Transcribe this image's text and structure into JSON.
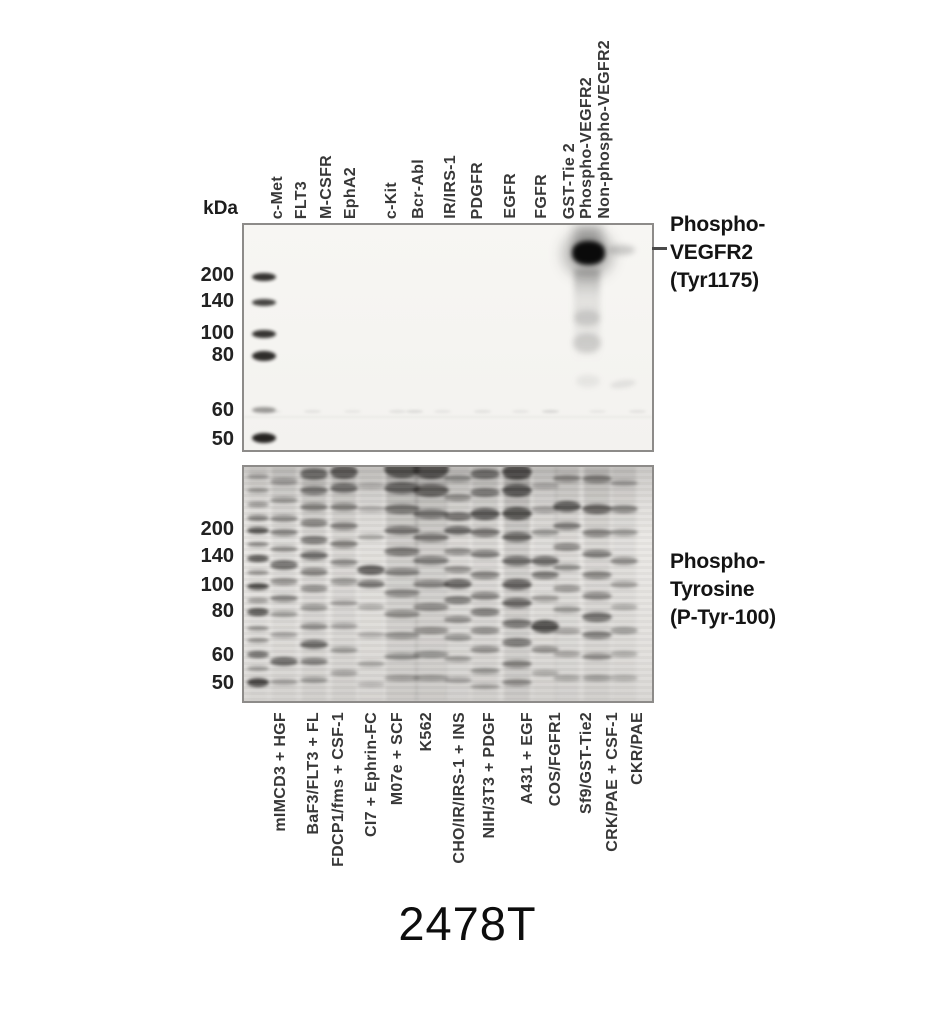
{
  "catalog_number": "2478T",
  "kda_unit": "kDa",
  "top_blot": {
    "antibody_lines": [
      "Phospho-",
      "VEGFR2",
      "(Tyr1175)"
    ],
    "lane_labels": [
      "c-Met",
      "FLT3",
      "M-CSFR",
      "EphA2",
      "c-Kit",
      "Bcr-Abl",
      "IR/IRS-1",
      "PDGFR",
      "EGFR",
      "FGFR",
      "GST-Tie 2",
      "Phospho-VEGFR2",
      "Non-phospho-VEGFR2"
    ],
    "markers": [
      {
        "label": "200",
        "pos": 0.231,
        "dark": 0.85,
        "h": 8
      },
      {
        "label": "140",
        "pos": 0.345,
        "dark": 0.78,
        "h": 7
      },
      {
        "label": "100",
        "pos": 0.485,
        "dark": 0.85,
        "h": 8
      },
      {
        "label": "80",
        "pos": 0.581,
        "dark": 0.88,
        "h": 10
      },
      {
        "label": "60",
        "pos": 0.821,
        "dark": 0.4,
        "h": 6
      },
      {
        "label": "50",
        "pos": 0.948,
        "dark": 0.92,
        "h": 10
      }
    ],
    "bands": {
      "strong_band_lane": "Phospho-VEGFR2",
      "faint_band_lane": "Non-phospho-VEGFR2"
    }
  },
  "bottom_blot": {
    "antibody_lines": [
      "Phospho-",
      "Tyrosine",
      "(P-Tyr-100)"
    ],
    "lane_labels": [
      "mIMCD3 + HGF",
      "BaF3/FLT3 + FL",
      "FDCP1/fms + CSF-1",
      "CI7 + Ephrin-FC",
      "M07e + SCF",
      "K562",
      "CHO/IR/IRS-1 + INS",
      "NIH/3T3 + PDGF",
      "A431 + EGF",
      "COS/FGFR1",
      "Sf9/GST-Tie2",
      "CRK/PAE + CSF-1",
      "CKR/PAE"
    ],
    "markers": [
      {
        "label": "200",
        "pos": 0.273
      },
      {
        "label": "140",
        "pos": 0.387
      },
      {
        "label": "100",
        "pos": 0.508
      },
      {
        "label": "80",
        "pos": 0.618
      },
      {
        "label": "60",
        "pos": 0.803
      },
      {
        "label": "50",
        "pos": 0.92
      }
    ],
    "lanes": [
      {
        "name": "marker",
        "base": 0.05,
        "bands": [
          [
            0.04,
            0.3,
            5
          ],
          [
            0.1,
            0.35,
            5
          ],
          [
            0.16,
            0.4,
            5
          ],
          [
            0.22,
            0.5,
            6
          ],
          [
            0.27,
            0.7,
            7
          ],
          [
            0.33,
            0.45,
            5
          ],
          [
            0.39,
            0.7,
            7
          ],
          [
            0.45,
            0.4,
            5
          ],
          [
            0.51,
            0.75,
            7
          ],
          [
            0.57,
            0.4,
            5
          ],
          [
            0.62,
            0.7,
            8
          ],
          [
            0.69,
            0.4,
            5
          ],
          [
            0.74,
            0.4,
            5
          ],
          [
            0.8,
            0.6,
            7
          ],
          [
            0.86,
            0.35,
            5
          ],
          [
            0.92,
            0.8,
            9
          ]
        ]
      },
      {
        "name": "mIMCD3 + HGF",
        "base": 0.1,
        "bands": [
          [
            0.06,
            0.3,
            7
          ],
          [
            0.14,
            0.35,
            6
          ],
          [
            0.22,
            0.4,
            7
          ],
          [
            0.28,
            0.45,
            7
          ],
          [
            0.35,
            0.4,
            6
          ],
          [
            0.42,
            0.55,
            10
          ],
          [
            0.49,
            0.4,
            7
          ],
          [
            0.56,
            0.45,
            7
          ],
          [
            0.63,
            0.35,
            6
          ],
          [
            0.72,
            0.3,
            6
          ],
          [
            0.83,
            0.6,
            9
          ],
          [
            0.92,
            0.3,
            6
          ]
        ]
      },
      {
        "name": "BaF3/FLT3 + FL",
        "base": 0.15,
        "bands": [
          [
            0.03,
            0.55,
            12
          ],
          [
            0.1,
            0.5,
            9
          ],
          [
            0.17,
            0.45,
            8
          ],
          [
            0.24,
            0.45,
            8
          ],
          [
            0.31,
            0.5,
            8
          ],
          [
            0.38,
            0.55,
            9
          ],
          [
            0.45,
            0.45,
            8
          ],
          [
            0.52,
            0.4,
            7
          ],
          [
            0.6,
            0.35,
            7
          ],
          [
            0.68,
            0.4,
            7
          ],
          [
            0.76,
            0.6,
            9
          ],
          [
            0.83,
            0.5,
            7
          ],
          [
            0.91,
            0.35,
            6
          ]
        ]
      },
      {
        "name": "FDCP1/fms + CSF-1",
        "base": 0.15,
        "bands": [
          [
            0.02,
            0.65,
            14
          ],
          [
            0.09,
            0.55,
            10
          ],
          [
            0.17,
            0.45,
            8
          ],
          [
            0.25,
            0.45,
            8
          ],
          [
            0.33,
            0.45,
            8
          ],
          [
            0.41,
            0.4,
            7
          ],
          [
            0.49,
            0.35,
            7
          ],
          [
            0.58,
            0.3,
            6
          ],
          [
            0.68,
            0.3,
            6
          ],
          [
            0.78,
            0.35,
            6
          ],
          [
            0.88,
            0.3,
            6
          ]
        ]
      },
      {
        "name": "CI7 + Ephrin-FC",
        "base": 0.07,
        "bands": [
          [
            0.08,
            0.22,
            6
          ],
          [
            0.18,
            0.25,
            6
          ],
          [
            0.3,
            0.28,
            6
          ],
          [
            0.44,
            0.65,
            10
          ],
          [
            0.5,
            0.55,
            8
          ],
          [
            0.6,
            0.28,
            6
          ],
          [
            0.72,
            0.25,
            6
          ],
          [
            0.84,
            0.28,
            6
          ],
          [
            0.93,
            0.22,
            5
          ]
        ]
      },
      {
        "name": "M07e + SCF",
        "base": 0.22,
        "bands": [
          [
            0.01,
            0.7,
            18
          ],
          [
            0.09,
            0.6,
            12
          ],
          [
            0.18,
            0.5,
            10
          ],
          [
            0.27,
            0.5,
            9
          ],
          [
            0.36,
            0.5,
            9
          ],
          [
            0.45,
            0.45,
            8
          ],
          [
            0.54,
            0.42,
            8
          ],
          [
            0.63,
            0.4,
            8
          ],
          [
            0.72,
            0.38,
            7
          ],
          [
            0.81,
            0.38,
            7
          ],
          [
            0.9,
            0.32,
            6
          ]
        ]
      },
      {
        "name": "K562",
        "base": 0.22,
        "bands": [
          [
            0.01,
            0.72,
            20
          ],
          [
            0.1,
            0.62,
            13
          ],
          [
            0.2,
            0.52,
            10
          ],
          [
            0.3,
            0.48,
            9
          ],
          [
            0.4,
            0.46,
            9
          ],
          [
            0.5,
            0.44,
            8
          ],
          [
            0.6,
            0.42,
            8
          ],
          [
            0.7,
            0.4,
            7
          ],
          [
            0.8,
            0.38,
            7
          ],
          [
            0.9,
            0.34,
            6
          ]
        ]
      },
      {
        "name": "CHO/IR/IRS-1 + INS",
        "base": 0.12,
        "bands": [
          [
            0.05,
            0.35,
            7
          ],
          [
            0.13,
            0.4,
            7
          ],
          [
            0.21,
            0.55,
            9
          ],
          [
            0.27,
            0.6,
            9
          ],
          [
            0.36,
            0.42,
            7
          ],
          [
            0.44,
            0.4,
            7
          ],
          [
            0.5,
            0.62,
            10
          ],
          [
            0.57,
            0.5,
            8
          ],
          [
            0.65,
            0.42,
            7
          ],
          [
            0.73,
            0.38,
            7
          ],
          [
            0.82,
            0.35,
            6
          ],
          [
            0.91,
            0.3,
            6
          ]
        ]
      },
      {
        "name": "NIH/3T3 + PDGF",
        "base": 0.15,
        "bands": [
          [
            0.03,
            0.55,
            10
          ],
          [
            0.11,
            0.5,
            9
          ],
          [
            0.2,
            0.68,
            12
          ],
          [
            0.28,
            0.52,
            9
          ],
          [
            0.37,
            0.48,
            8
          ],
          [
            0.46,
            0.45,
            8
          ],
          [
            0.55,
            0.45,
            8
          ],
          [
            0.62,
            0.5,
            8
          ],
          [
            0.7,
            0.42,
            7
          ],
          [
            0.78,
            0.4,
            7
          ],
          [
            0.87,
            0.38,
            6
          ],
          [
            0.94,
            0.32,
            5
          ]
        ]
      },
      {
        "name": "A431 + EGF",
        "base": 0.24,
        "bands": [
          [
            0.02,
            0.72,
            16
          ],
          [
            0.1,
            0.68,
            13
          ],
          [
            0.2,
            0.7,
            13
          ],
          [
            0.3,
            0.58,
            10
          ],
          [
            0.4,
            0.55,
            10
          ],
          [
            0.5,
            0.62,
            11
          ],
          [
            0.58,
            0.58,
            10
          ],
          [
            0.67,
            0.52,
            9
          ],
          [
            0.75,
            0.5,
            9
          ],
          [
            0.84,
            0.45,
            8
          ],
          [
            0.92,
            0.4,
            7
          ]
        ]
      },
      {
        "name": "COS/FGFR1",
        "base": 0.1,
        "bands": [
          [
            0.08,
            0.25,
            6
          ],
          [
            0.18,
            0.3,
            7
          ],
          [
            0.28,
            0.35,
            7
          ],
          [
            0.4,
            0.58,
            10
          ],
          [
            0.46,
            0.52,
            8
          ],
          [
            0.56,
            0.32,
            7
          ],
          [
            0.68,
            0.75,
            13
          ],
          [
            0.78,
            0.4,
            7
          ],
          [
            0.88,
            0.28,
            6
          ]
        ]
      },
      {
        "name": "Sf9/GST-Tie2",
        "base": 0.12,
        "bands": [
          [
            0.05,
            0.4,
            7
          ],
          [
            0.17,
            0.68,
            11
          ],
          [
            0.25,
            0.48,
            8
          ],
          [
            0.34,
            0.42,
            8
          ],
          [
            0.43,
            0.38,
            7
          ],
          [
            0.52,
            0.36,
            7
          ],
          [
            0.61,
            0.34,
            7
          ],
          [
            0.7,
            0.32,
            6
          ],
          [
            0.8,
            0.32,
            6
          ],
          [
            0.9,
            0.28,
            6
          ]
        ]
      },
      {
        "name": "CRK/PAE + CSF-1",
        "base": 0.15,
        "bands": [
          [
            0.05,
            0.45,
            8
          ],
          [
            0.18,
            0.62,
            10
          ],
          [
            0.28,
            0.45,
            8
          ],
          [
            0.37,
            0.48,
            8
          ],
          [
            0.46,
            0.44,
            8
          ],
          [
            0.55,
            0.42,
            8
          ],
          [
            0.64,
            0.55,
            10
          ],
          [
            0.72,
            0.48,
            8
          ],
          [
            0.81,
            0.4,
            7
          ],
          [
            0.9,
            0.34,
            6
          ]
        ]
      },
      {
        "name": "CKR/PAE",
        "base": 0.09,
        "bands": [
          [
            0.07,
            0.3,
            6
          ],
          [
            0.18,
            0.45,
            8
          ],
          [
            0.28,
            0.35,
            7
          ],
          [
            0.4,
            0.4,
            8
          ],
          [
            0.5,
            0.32,
            7
          ],
          [
            0.6,
            0.28,
            6
          ],
          [
            0.7,
            0.35,
            7
          ],
          [
            0.8,
            0.28,
            6
          ],
          [
            0.9,
            0.24,
            6
          ]
        ]
      }
    ]
  }
}
